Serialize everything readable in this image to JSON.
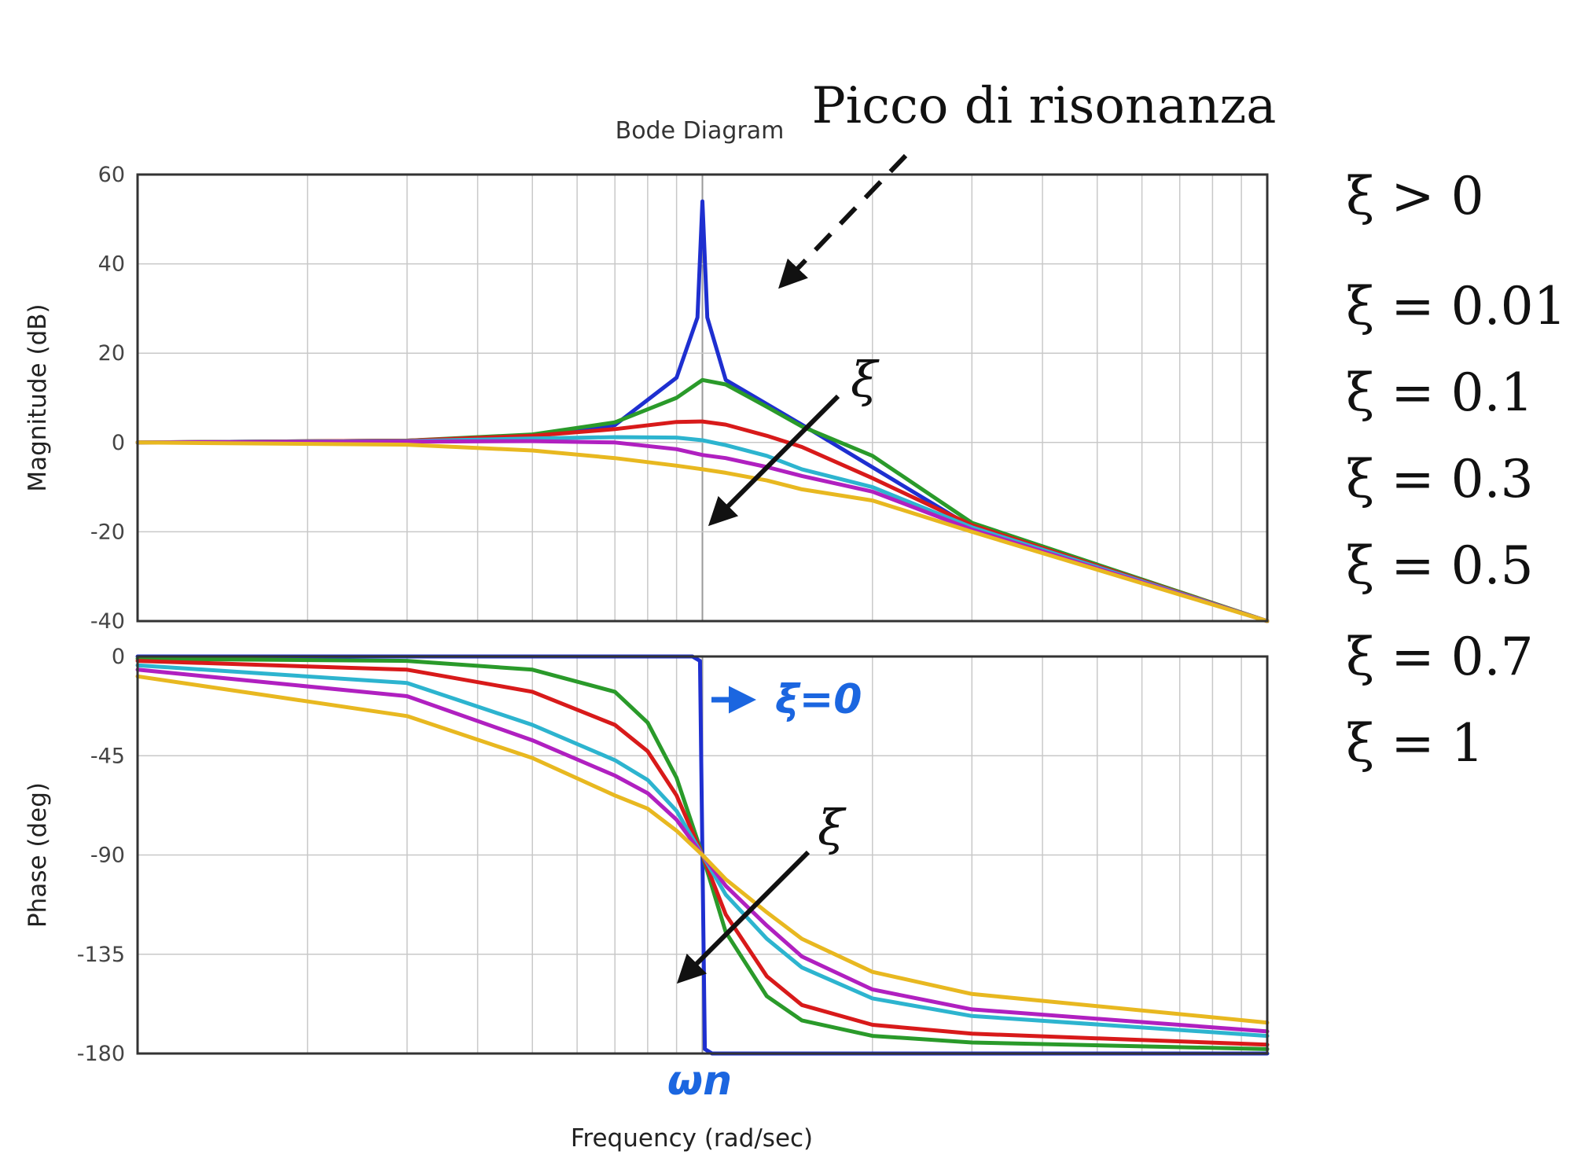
{
  "chart_data": [
    {
      "type": "line",
      "title": "Bode Diagram",
      "ylabel": "Magnitude (dB)",
      "xlabel": "",
      "ylim": [
        -40,
        60
      ],
      "yticks": [
        "60",
        "40",
        "20",
        "0",
        "-20",
        "-40"
      ],
      "x_scale": "log",
      "grid": true,
      "series": [
        {
          "color": "#1e2fd0",
          "x": [
            0.1,
            0.3,
            0.5,
            0.7,
            0.9,
            0.98,
            1.0,
            1.02,
            1.1,
            1.5,
            3,
            10
          ],
          "values": [
            0,
            0.4,
            1.4,
            3.9,
            14.5,
            28,
            54,
            28,
            14,
            4,
            -19,
            -40
          ]
        },
        {
          "color": "#2a9a2a",
          "x": [
            0.1,
            0.3,
            0.5,
            0.7,
            0.9,
            1.0,
            1.1,
            1.3,
            1.5,
            2,
            3,
            10
          ],
          "values": [
            0,
            0.4,
            1.8,
            4.5,
            10,
            14,
            13,
            8,
            3.6,
            -3,
            -18,
            -40
          ]
        },
        {
          "color": "#d81a1a",
          "x": [
            0.1,
            0.3,
            0.5,
            0.7,
            0.9,
            1.0,
            1.1,
            1.3,
            1.5,
            2,
            3,
            10
          ],
          "values": [
            0,
            0.4,
            1.5,
            3,
            4.6,
            4.7,
            4,
            1.5,
            -1,
            -8,
            -18.5,
            -40
          ]
        },
        {
          "color": "#2db4cf",
          "x": [
            0.1,
            0.3,
            0.5,
            0.7,
            0.9,
            1.0,
            1.1,
            1.3,
            1.5,
            2,
            3,
            10
          ],
          "values": [
            0,
            0.3,
            0.9,
            1.2,
            1.1,
            0.5,
            -0.6,
            -3,
            -6,
            -10,
            -19,
            -40
          ]
        },
        {
          "color": "#b020c0",
          "x": [
            0.1,
            0.3,
            0.5,
            0.7,
            0.9,
            1.0,
            1.1,
            1.3,
            1.5,
            2,
            3,
            10
          ],
          "values": [
            0,
            0.2,
            0.3,
            0,
            -1.5,
            -2.8,
            -3.5,
            -5.5,
            -7.5,
            -11,
            -19.5,
            -40
          ]
        },
        {
          "color": "#e8b820",
          "x": [
            0.1,
            0.3,
            0.5,
            0.7,
            0.9,
            1.0,
            1.1,
            1.3,
            1.5,
            2,
            3,
            10
          ],
          "values": [
            0,
            -0.5,
            -1.8,
            -3.5,
            -5.2,
            -6,
            -6.8,
            -8.5,
            -10.5,
            -13,
            -20,
            -40
          ]
        }
      ],
      "annotation": "Picco di risonanza",
      "arrow_label": "ξ"
    },
    {
      "type": "line",
      "title": "",
      "ylabel": "Phase (deg)",
      "xlabel": "Frequency  (rad/sec)",
      "ylim": [
        -180,
        0
      ],
      "yticks": [
        "0",
        "-45",
        "-90",
        "-135",
        "-180"
      ],
      "x_scale": "log",
      "grid": true,
      "series": [
        {
          "color": "#1e2fd0",
          "x": [
            0.1,
            0.5,
            0.96,
            0.99,
            1.0,
            1.01,
            1.04,
            2,
            10
          ],
          "values": [
            0,
            0,
            0,
            -2,
            -90,
            -178,
            -180,
            -180,
            -180
          ]
        },
        {
          "color": "#2a9a2a",
          "x": [
            0.1,
            0.3,
            0.5,
            0.7,
            0.8,
            0.9,
            1.0,
            1.1,
            1.3,
            1.5,
            2,
            3,
            10
          ],
          "values": [
            -1,
            -2,
            -6,
            -16,
            -30,
            -55,
            -90,
            -125,
            -154,
            -165,
            -172,
            -175,
            -178
          ]
        },
        {
          "color": "#d81a1a",
          "x": [
            0.1,
            0.3,
            0.5,
            0.7,
            0.8,
            0.9,
            1.0,
            1.1,
            1.3,
            1.5,
            2,
            3,
            10
          ],
          "values": [
            -2,
            -6,
            -16,
            -31,
            -43,
            -63,
            -90,
            -117,
            -145,
            -158,
            -167,
            -171,
            -176
          ]
        },
        {
          "color": "#2db4cf",
          "x": [
            0.1,
            0.3,
            0.5,
            0.7,
            0.8,
            0.9,
            1.0,
            1.1,
            1.3,
            1.5,
            2,
            3,
            10
          ],
          "values": [
            -4,
            -12,
            -31,
            -47,
            -56,
            -70,
            -90,
            -108,
            -128,
            -141,
            -155,
            -163,
            -172
          ]
        },
        {
          "color": "#b020c0",
          "x": [
            0.1,
            0.3,
            0.5,
            0.7,
            0.8,
            0.9,
            1.0,
            1.1,
            1.3,
            1.5,
            2,
            3,
            10
          ],
          "values": [
            -6,
            -18,
            -38,
            -54,
            -62,
            -74,
            -90,
            -104,
            -122,
            -136,
            -151,
            -160,
            -170
          ]
        },
        {
          "color": "#e8b820",
          "x": [
            0.1,
            0.3,
            0.5,
            0.7,
            0.8,
            0.9,
            1.0,
            1.1,
            1.3,
            1.5,
            2,
            3,
            10
          ],
          "values": [
            -9,
            -27,
            -46,
            -63,
            -69,
            -79,
            -90,
            -101,
            -116,
            -128,
            -143,
            -153,
            -166
          ]
        }
      ],
      "annotation": "ξ=0",
      "arrow_label": "ξ",
      "x_marker_label": "ωn"
    }
  ],
  "legend": [
    "ξ > 0",
    "ξ = 0.01",
    "ξ = 0.1",
    "ξ = 0.3",
    "ξ = 0.5",
    "ξ = 0.7",
    "ξ = 1"
  ]
}
